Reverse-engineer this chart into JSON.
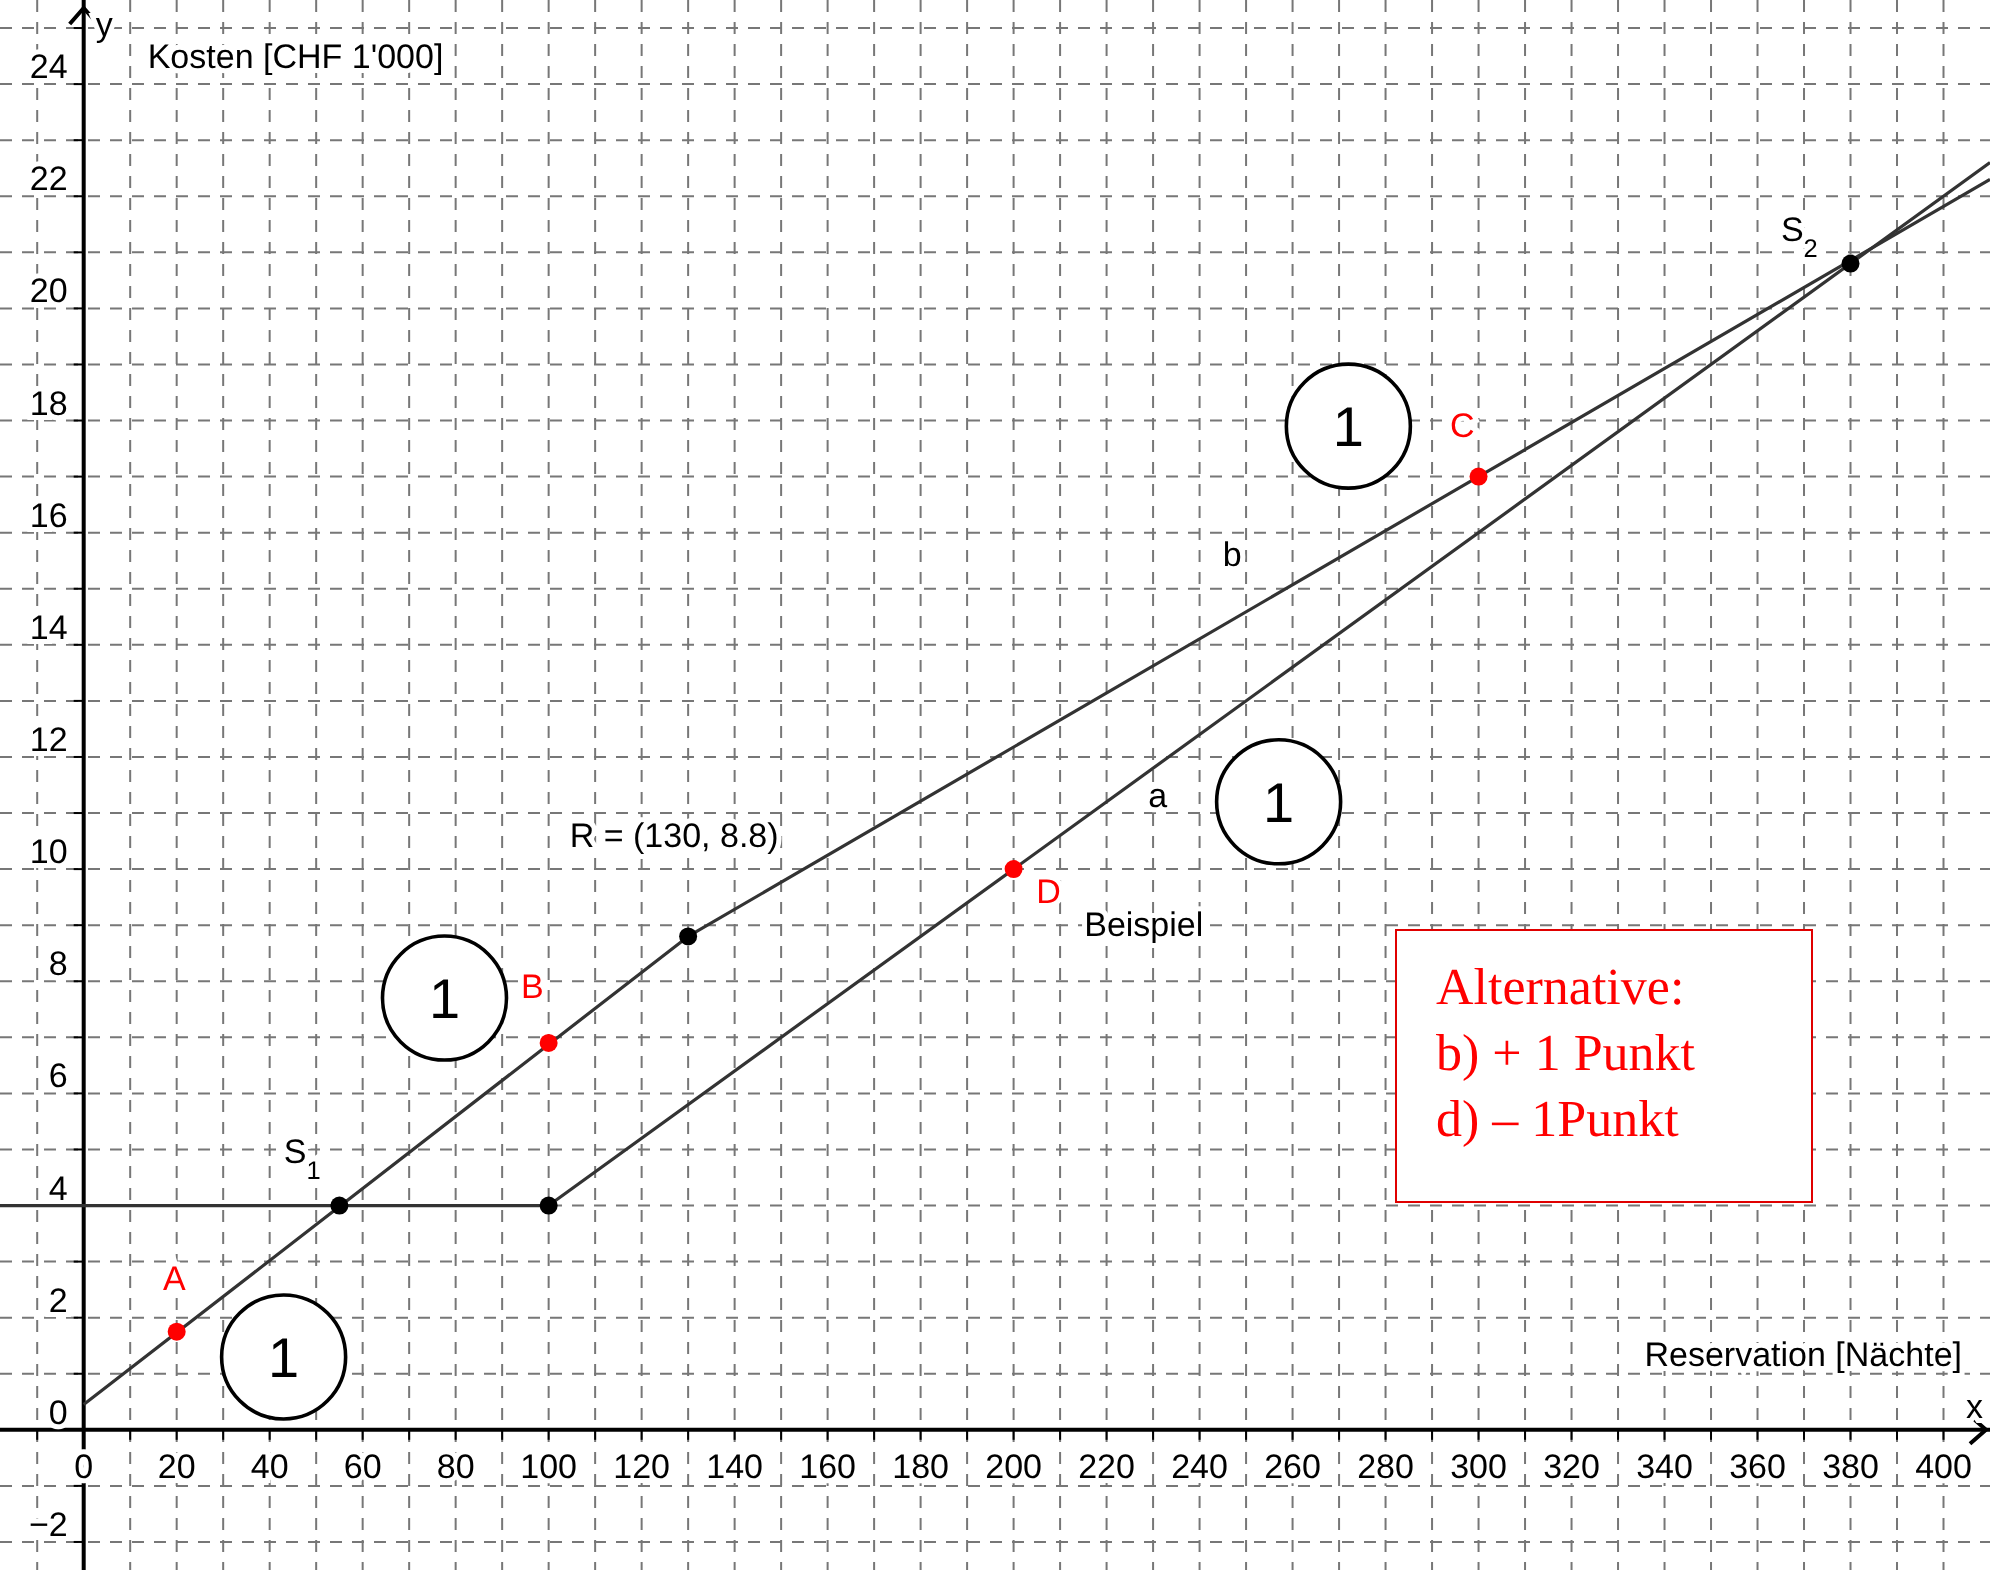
{
  "chart_data": {
    "type": "line",
    "xlabel": "Reservation [Nächte]",
    "ylabel": "Kosten [CHF 1'000]",
    "xlim": [
      -18,
      410
    ],
    "ylim": [
      -2.5,
      25.5
    ],
    "xticks": [
      {
        "value": -10,
        "label": null
      },
      0,
      {
        "value": 10,
        "label": null
      },
      20,
      {
        "value": 30,
        "label": null
      },
      40,
      {
        "value": 50,
        "label": null
      },
      60,
      {
        "value": 70,
        "label": null
      },
      80,
      {
        "value": 90,
        "label": null
      },
      100,
      {
        "value": 110,
        "label": null
      },
      120,
      {
        "value": 130,
        "label": null
      },
      140,
      {
        "value": 150,
        "label": null
      },
      160,
      {
        "value": 170,
        "label": null
      },
      180,
      {
        "value": 190,
        "label": null
      },
      200,
      {
        "value": 210,
        "label": null
      },
      220,
      {
        "value": 230,
        "label": null
      },
      240,
      {
        "value": 250,
        "label": null
      },
      260,
      {
        "value": 270,
        "label": null
      },
      280,
      {
        "value": 290,
        "label": null
      },
      300,
      {
        "value": 310,
        "label": null
      },
      320,
      {
        "value": 330,
        "label": null
      },
      340,
      {
        "value": 350,
        "label": null
      },
      360,
      {
        "value": 370,
        "label": null
      },
      380,
      {
        "value": 390,
        "label": null
      },
      400
    ],
    "yticks": [
      {
        "value": -2,
        "label": "−2"
      },
      {
        "value": -1,
        "label": null
      },
      0,
      {
        "value": 1,
        "label": null
      },
      2,
      {
        "value": 3,
        "label": null
      },
      4,
      {
        "value": 5,
        "label": null
      },
      6,
      {
        "value": 7,
        "label": null
      },
      8,
      {
        "value": 9,
        "label": null
      },
      10,
      {
        "value": 11,
        "label": null
      },
      12,
      {
        "value": 13,
        "label": null
      },
      14,
      {
        "value": 15,
        "label": null
      },
      16,
      {
        "value": 17,
        "label": null
      },
      18,
      {
        "value": 19,
        "label": null
      },
      20,
      {
        "value": 21,
        "label": null
      },
      22,
      {
        "value": 23,
        "label": null
      },
      24,
      {
        "value": 25,
        "label": null
      }
    ],
    "grid": true,
    "line_style": "solid",
    "series": [
      {
        "color": "#333333",
        "x": [
          -18,
          100,
          410
        ],
        "values": [
          4,
          4,
          22.6
        ]
      },
      {
        "color": "#333333",
        "x": [
          0,
          130,
          300,
          410
        ],
        "values": [
          0.45,
          8.8,
          17,
          22.3
        ]
      },
      {
        "type": "scatter",
        "marker": "circle",
        "color": "#000000",
        "x": [
          55,
          100,
          130,
          380
        ],
        "values": [
          4,
          4,
          8.8,
          20.8
        ]
      },
      {
        "type": "scatter",
        "marker": "circle",
        "color": "#ff0000",
        "x": [
          20,
          100,
          200,
          300
        ],
        "values": [
          1.75,
          6.9,
          10,
          17
        ]
      }
    ],
    "annotations": [
      "y",
      "x",
      "Alternative:\nb) + 1 Punkt\nd) – 1Punkt",
      "A",
      "S$_{1}$",
      "B",
      "R = (130, 8.8)",
      "b",
      "a",
      "C",
      "D",
      "Beispiel",
      "S$_{2}$",
      "1",
      "1",
      "1",
      "1"
    ]
  }
}
